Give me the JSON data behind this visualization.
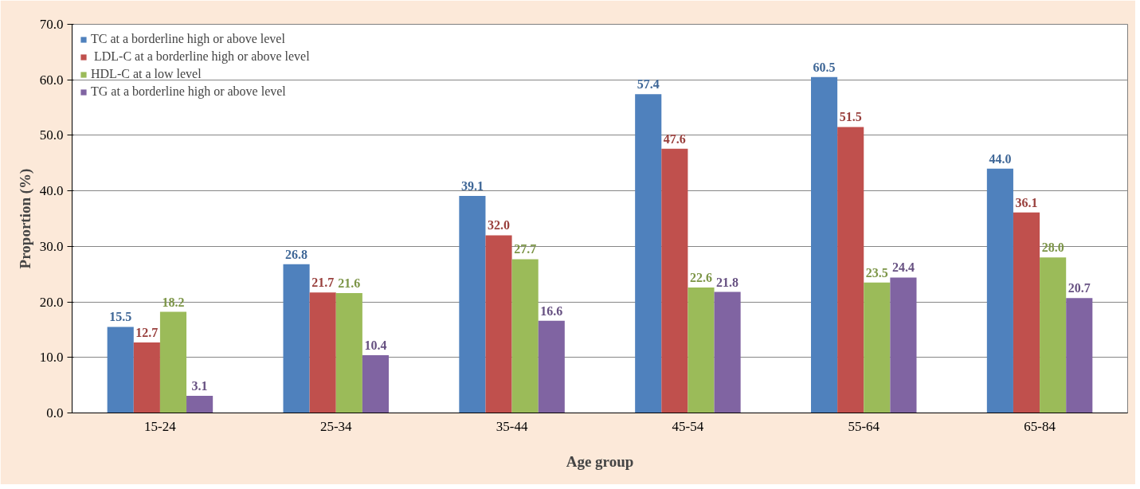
{
  "chart_data": {
    "type": "bar",
    "xlabel": "Age group",
    "ylabel": "Proportion (%)",
    "categories": [
      "15-24",
      "25-34",
      "35-44",
      "45-54",
      "55-64",
      "65-84"
    ],
    "series": [
      {
        "name": "TC at a borderline high or above level",
        "color": "#4f81bd",
        "values": [
          15.5,
          26.8,
          39.1,
          57.4,
          60.5,
          44.0
        ],
        "value_labels": [
          "15.5",
          "26.8",
          "39.1",
          "57.4",
          "60.5",
          "44.0"
        ]
      },
      {
        "name": " LDL-C at a borderline high or above level",
        "color": "#c0504d",
        "values": [
          12.7,
          21.7,
          32.0,
          47.6,
          51.5,
          36.1
        ],
        "value_labels": [
          "12.7",
          "21.7",
          "32.0",
          "47.6",
          "51.5",
          "36.1"
        ]
      },
      {
        "name": "HDL-C at a low level",
        "color": "#9bbb59",
        "values": [
          18.2,
          21.6,
          27.7,
          22.6,
          23.5,
          28.0
        ],
        "value_labels": [
          "18.2",
          "21.6",
          "27.7",
          "22.6",
          "23.5",
          "28.0"
        ]
      },
      {
        "name": "TG at a borderline high or above level",
        "color": "#8064a2",
        "values": [
          3.1,
          10.4,
          16.6,
          21.8,
          24.4,
          20.7
        ],
        "value_labels": [
          "3.1",
          "10.4",
          "16.6",
          "21.8",
          "24.4",
          "20.7"
        ]
      }
    ],
    "ylim": [
      0,
      70
    ],
    "yticks": [
      {
        "value": 0,
        "label": "0.0"
      },
      {
        "value": 10,
        "label": "10.0"
      },
      {
        "value": 20,
        "label": "20.0"
      },
      {
        "value": 30,
        "label": "30.0"
      },
      {
        "value": 40,
        "label": "40.0"
      },
      {
        "value": 50,
        "label": "50.0"
      },
      {
        "value": 60,
        "label": "60.0"
      },
      {
        "value": 70,
        "label": "70.0"
      }
    ],
    "grid": "y",
    "legend": "top left"
  }
}
